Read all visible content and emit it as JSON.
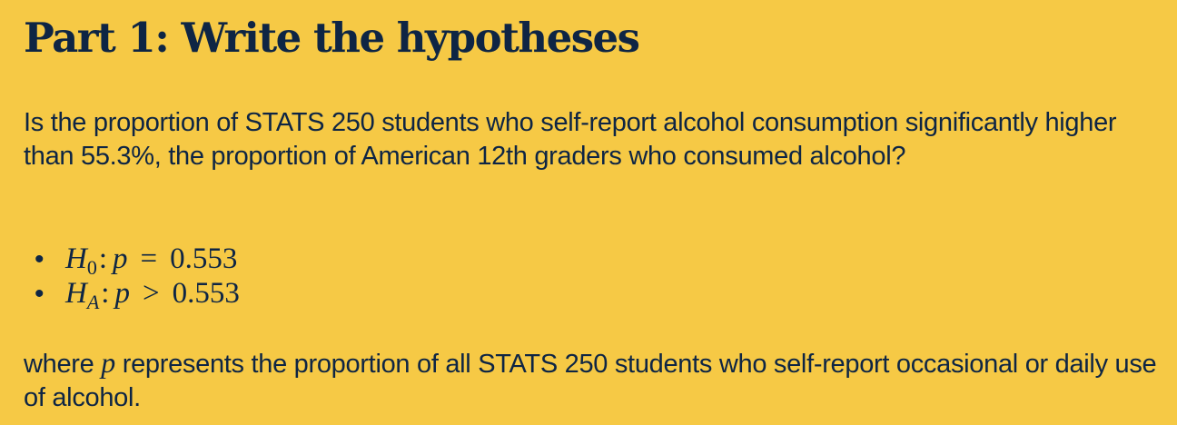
{
  "heading": "Part 1: Write the hypotheses",
  "question": "Is the proportion of STATS 250 students who self-report alcohol consumption significantly higher than 55.3%, the proportion of American 12th graders who consumed alcohol?",
  "hypotheses": [
    {
      "bullet": "•",
      "symbol": "H",
      "subscript": "0",
      "colon": ":",
      "parameter": "p",
      "relation": "=",
      "value": "0.553"
    },
    {
      "bullet": "•",
      "symbol": "H",
      "subscript": "A",
      "colon": ":",
      "parameter": "p",
      "relation": ">",
      "value": "0.553"
    }
  ],
  "conclusion": {
    "before": "where ",
    "variable": "p",
    "after": " represents the proportion of all STATS 250 students who self-report occasional or daily use of alcohol."
  },
  "colors": {
    "background": "#F6C945",
    "text": "#0E2544"
  }
}
